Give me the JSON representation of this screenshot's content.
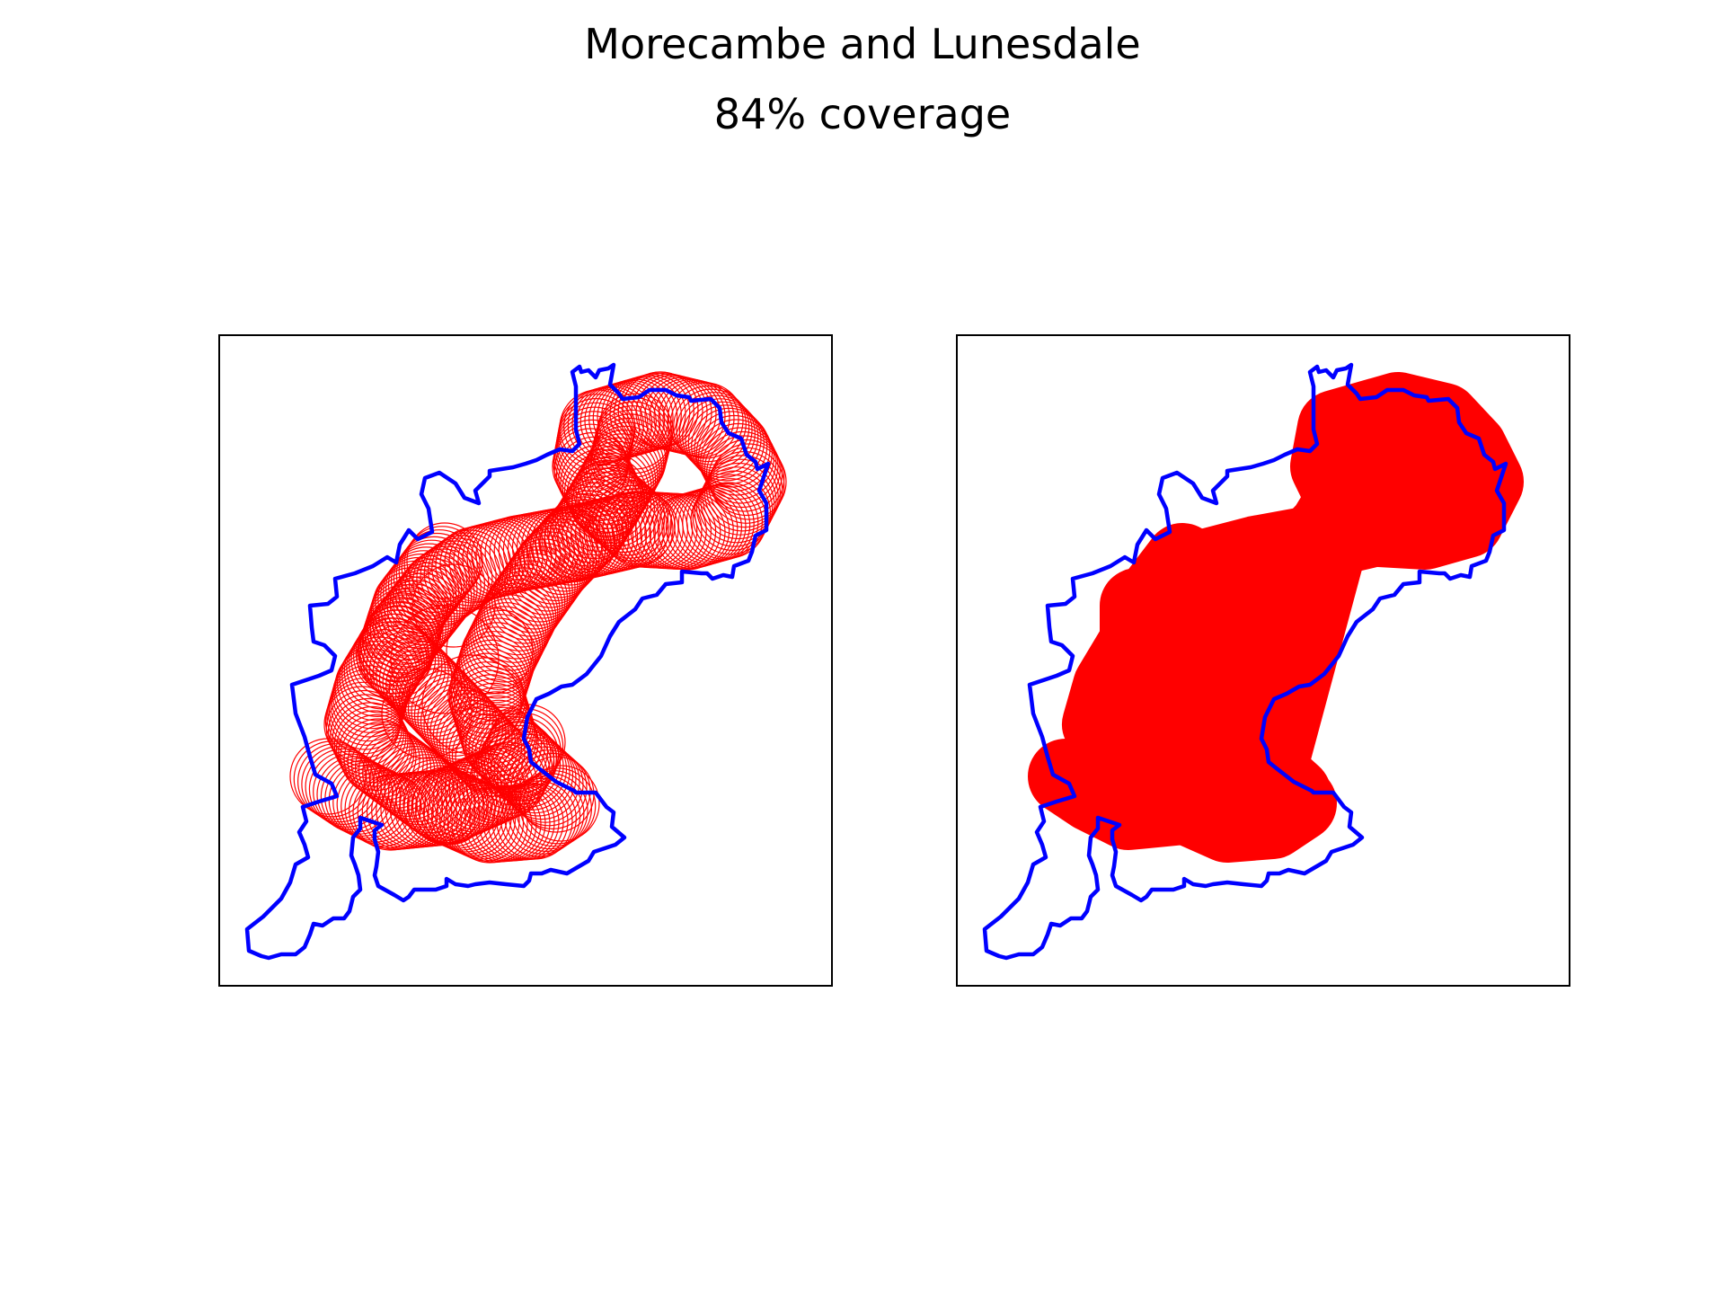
{
  "map": {
    "title": "Morecambe and Lunesdale",
    "subtitle": "84% coverage",
    "panels": [
      {
        "name": "circle-outlines",
        "style": "outline"
      },
      {
        "name": "filled-union",
        "style": "filled"
      }
    ],
    "colors": {
      "boundary": "#0000ff",
      "coverage": "#ff0000",
      "frame": "#000000",
      "background": "#ffffff"
    }
  }
}
